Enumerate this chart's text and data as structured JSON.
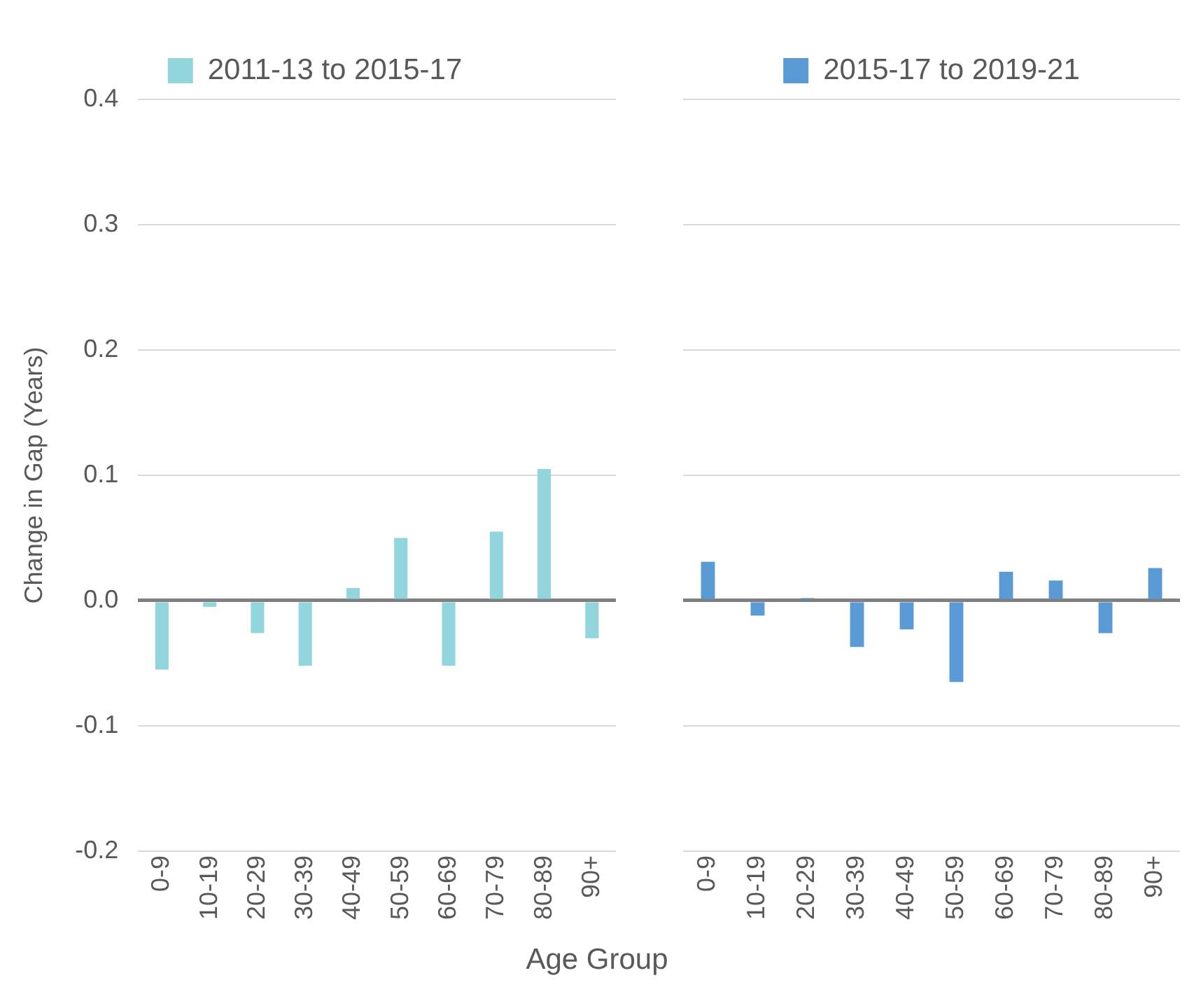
{
  "chart_data": [
    {
      "type": "bar",
      "ylabel": "Change in Gap (Years)",
      "xlabel": "Age Group",
      "categories": [
        "0-9",
        "10-19",
        "20-29",
        "30-39",
        "40-49",
        "50-59",
        "60-69",
        "70-79",
        "80-89",
        "90+"
      ],
      "series": [
        {
          "name": "2011-13 to 2015-17",
          "color": "#92d5dc",
          "values": [
            -0.055,
            -0.005,
            -0.026,
            -0.052,
            0.01,
            0.05,
            -0.052,
            0.055,
            0.105,
            -0.03
          ]
        }
      ],
      "ylim": [
        -0.2,
        0.4
      ],
      "yticks": [
        {
          "value": -0.2,
          "label": "-0.2"
        },
        {
          "value": -0.1,
          "label": "-0.1"
        },
        {
          "value": 0,
          "label": "0.0"
        },
        {
          "value": 0.1,
          "label": "0.1"
        },
        {
          "value": 0.2,
          "label": "0.2"
        },
        {
          "value": 0.3,
          "label": "0.3"
        },
        {
          "value": 0.4,
          "label": "0.4"
        }
      ],
      "grid": "y",
      "legend": "top"
    },
    {
      "type": "bar",
      "categories": [
        "0-9",
        "10-19",
        "20-29",
        "30-39",
        "40-49",
        "50-59",
        "60-69",
        "70-79",
        "80-89",
        "90+"
      ],
      "series": [
        {
          "name": "2015-17 to 2019-21",
          "color": "#5b9bd5",
          "values": [
            0.031,
            -0.012,
            0.002,
            -0.037,
            -0.023,
            -0.065,
            0.023,
            0.016,
            -0.026,
            0.026
          ]
        }
      ],
      "ylim": [
        -0.2,
        0.4
      ],
      "yticks": [
        -0.2,
        -0.1,
        0,
        0.1,
        0.2,
        0.3,
        0.4
      ],
      "grid": "y",
      "legend": "top",
      "tick_labels": "x"
    }
  ]
}
